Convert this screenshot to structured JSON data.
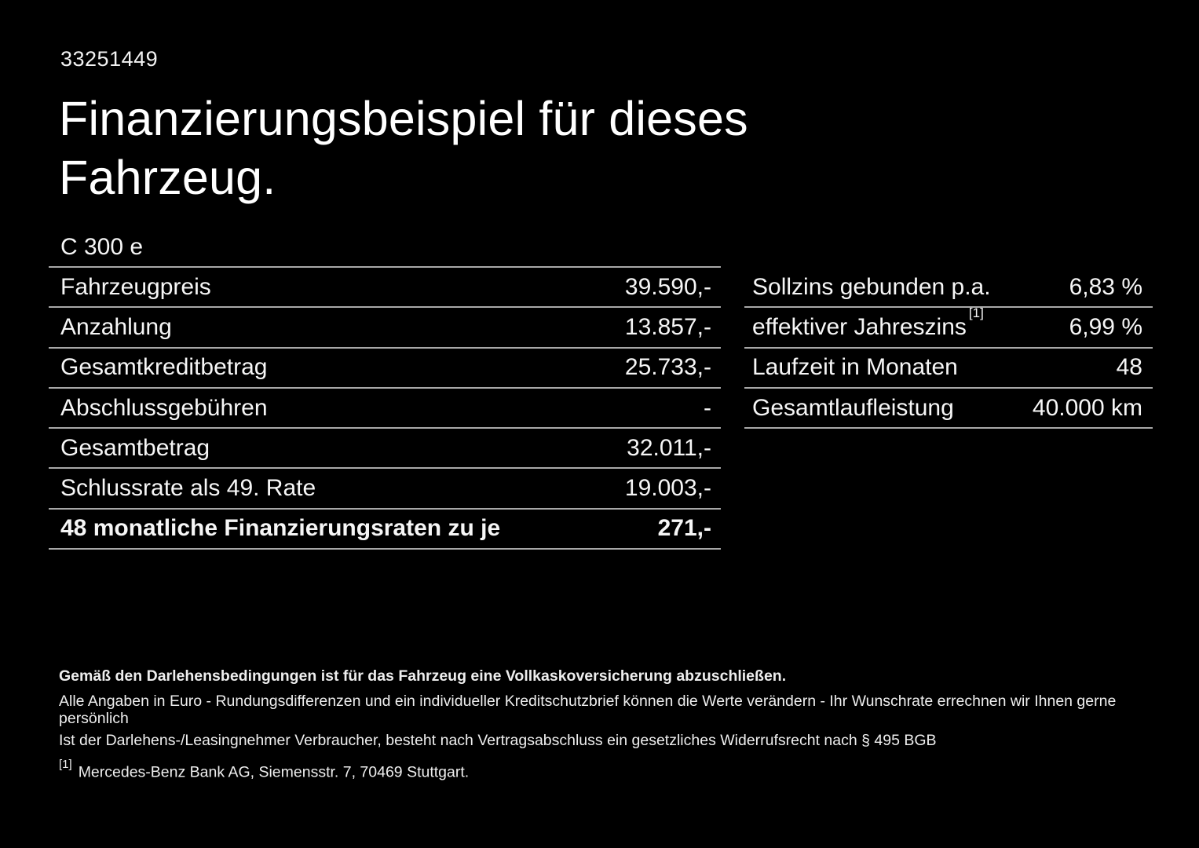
{
  "colors": {
    "background": "#000000",
    "text": "#ffffff",
    "divider": "#a8a8a8"
  },
  "header": {
    "listing_id": "33251449",
    "title_line1": "Finanzierungsbeispiel für dieses",
    "title_line2": "Fahrzeug."
  },
  "vehicle": {
    "model": "C 300 e"
  },
  "finance_table_left": {
    "rows": [
      {
        "label": "Fahrzeugpreis",
        "value": "39.590,-"
      },
      {
        "label": "Anzahlung",
        "value": "13.857,-"
      },
      {
        "label": "Gesamtkreditbetrag",
        "value": "25.733,-"
      },
      {
        "label": "Abschlussgebühren",
        "value": "-"
      },
      {
        "label": "Gesamtbetrag",
        "value": "32.011,-"
      },
      {
        "label": "Schlussrate als 49. Rate",
        "value": "19.003,-"
      },
      {
        "label": "48 monatliche Finanzierungsraten zu je",
        "value": "271,-"
      }
    ]
  },
  "finance_table_right": {
    "rows": [
      {
        "label": "Sollzins gebunden p.a.",
        "value": "6,83 %"
      },
      {
        "label": "effektiver Jahreszins",
        "footnote_marker": "[1]",
        "value": "6,99 %"
      },
      {
        "label": "Laufzeit in Monaten",
        "value": "48"
      },
      {
        "label": "Gesamtlaufleistung",
        "value": "40.000 km"
      }
    ]
  },
  "footer": {
    "insurance_note": "Gemäß den Darlehensbedingungen ist für das Fahrzeug eine Vollkaskoversicherung abzuschließen.",
    "rounding_note": "Alle Angaben in Euro - Rundungsdifferenzen und ein individueller Kreditschutzbrief können die Werte verändern - Ihr Wunschrate errechnen wir Ihnen gerne persönlich",
    "withdrawal_note": "Ist der Darlehens-/Leasingnehmer Verbraucher, besteht nach Vertragsabschluss ein gesetzliches Widerrufsrecht nach § 495 BGB",
    "footnote_marker": "[1]",
    "footnote_text": "Mercedes-Benz Bank AG, Siemensstr. 7, 70469 Stuttgart."
  }
}
